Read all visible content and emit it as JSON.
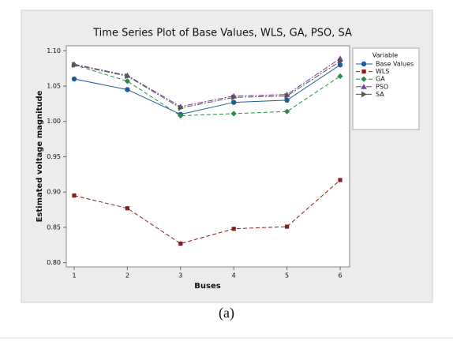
{
  "chart_data": {
    "type": "line",
    "title": "Time Series Plot of Base Values, WLS, GA, PSO, SA",
    "x_label": "Buses",
    "y_label": "Estimated voltage magnitude",
    "categories": [
      "1",
      "2",
      "3",
      "4",
      "5",
      "6"
    ],
    "ylim": [
      0.794,
      1.107
    ],
    "yticks": [
      {
        "value": 0.8,
        "label": "0.80"
      },
      {
        "value": 0.85,
        "label": "0.85"
      },
      {
        "value": 0.9,
        "label": "0.90"
      },
      {
        "value": 0.95,
        "label": "0.95"
      },
      {
        "value": 1,
        "label": "1.00"
      },
      {
        "value": 1.05,
        "label": "1.05"
      },
      {
        "value": 1.1,
        "label": "1.10"
      }
    ],
    "legend_title": "Variable",
    "legend_position": "right",
    "series": [
      {
        "name": "Base Values",
        "color": "#1f5b98",
        "line_style": "solid",
        "marker": "circle",
        "values": [
          1.06,
          1.045,
          1.01,
          1.027,
          1.03,
          1.08
        ]
      },
      {
        "name": "WLS",
        "color": "#8b1c1c",
        "line_style": "dashed",
        "marker": "square",
        "values": [
          0.895,
          0.877,
          0.827,
          0.848,
          0.851,
          0.917
        ]
      },
      {
        "name": "GA",
        "color": "#2a8a4a",
        "line_style": "dashed",
        "marker": "diamond",
        "values": [
          1.08,
          1.057,
          1.008,
          1.011,
          1.014,
          1.064
        ]
      },
      {
        "name": "PSO",
        "color": "#7a3d9c",
        "line_style": "dashdot",
        "marker": "triangle",
        "values": [
          1.081,
          1.065,
          1.021,
          1.036,
          1.038,
          1.089
        ]
      },
      {
        "name": "SA",
        "color": "#555555",
        "line_style": "dashdot",
        "marker": "triangle-right",
        "values": [
          1.08,
          1.064,
          1.019,
          1.034,
          1.036,
          1.085
        ]
      }
    ]
  },
  "caption": "(a)"
}
